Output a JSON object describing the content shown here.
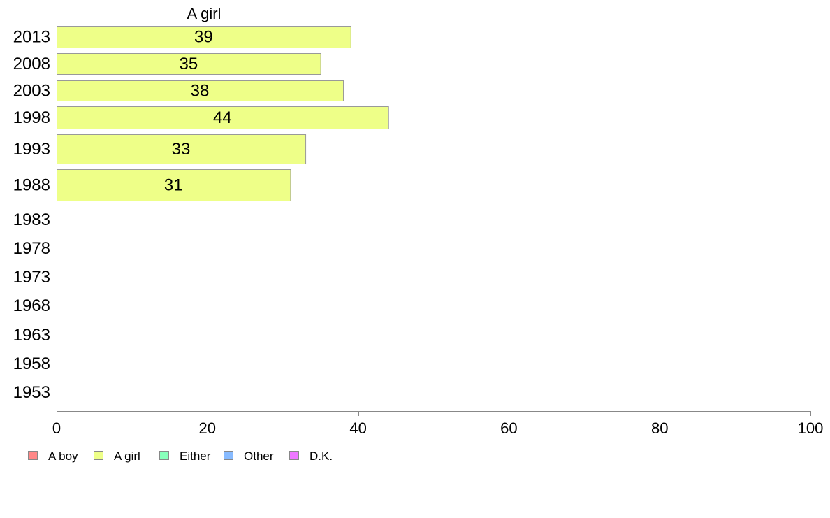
{
  "chart_data": {
    "type": "bar",
    "orientation": "horizontal",
    "stacked": true,
    "title": "",
    "series_label": "A girl",
    "categories": [
      "2013",
      "2008",
      "2003",
      "1998",
      "1993",
      "1988",
      "1983",
      "1978",
      "1973",
      "1968",
      "1963",
      "1958",
      "1953"
    ],
    "series": [
      {
        "name": "A girl",
        "color": "#eeff88",
        "values": [
          39,
          35,
          38,
          44,
          33,
          31,
          null,
          null,
          null,
          null,
          null,
          null,
          null
        ]
      }
    ],
    "xlim": [
      0,
      100
    ],
    "xticks": [
      0,
      20,
      40,
      60,
      80,
      100
    ],
    "grid": false,
    "legend": {
      "placement": "bottom-left",
      "items": [
        {
          "label": "A boy",
          "color": "#ff8888"
        },
        {
          "label": "A girl",
          "color": "#eeff88"
        },
        {
          "label": "Either",
          "color": "#88ffbb"
        },
        {
          "label": "Other",
          "color": "#88bbff"
        },
        {
          "label": "D.K.",
          "color": "#ee77ff"
        }
      ]
    }
  }
}
